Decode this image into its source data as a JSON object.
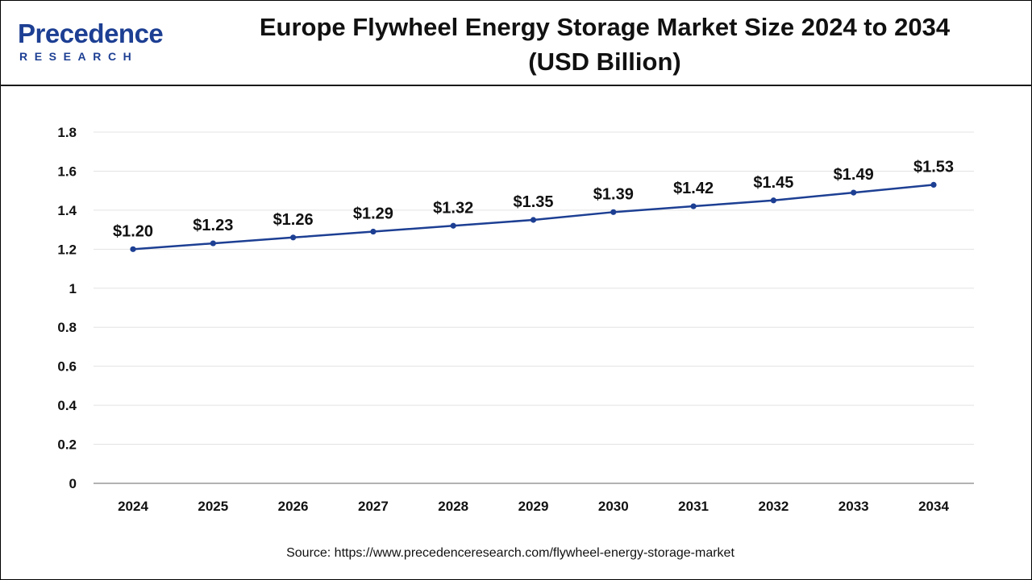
{
  "brand": {
    "name_main": "Precedence",
    "name_sub": "RESEARCH",
    "color": "#1d3f93"
  },
  "chart_data": {
    "type": "line",
    "title": "Europe Flywheel Energy Storage Market Size 2024 to 2034",
    "subtitle": "(USD Billion)",
    "categories": [
      "2024",
      "2025",
      "2026",
      "2027",
      "2028",
      "2029",
      "2030",
      "2031",
      "2032",
      "2033",
      "2034"
    ],
    "values": [
      1.2,
      1.23,
      1.26,
      1.29,
      1.32,
      1.35,
      1.39,
      1.42,
      1.45,
      1.49,
      1.53
    ],
    "data_labels": [
      "$1.20",
      "$1.23",
      "$1.26",
      "$1.29",
      "$1.32",
      "$1.35",
      "$1.39",
      "$1.42",
      "$1.45",
      "$1.49",
      "$1.53"
    ],
    "y_ticks": [
      0,
      0.2,
      0.4,
      0.6,
      0.8,
      1,
      1.2,
      1.4,
      1.6,
      1.8
    ],
    "y_tick_labels": [
      "0",
      "0.2",
      "0.4",
      "0.6",
      "0.8",
      "1",
      "1.2",
      "1.4",
      "1.6",
      "1.8"
    ],
    "ylim": [
      0,
      1.8
    ],
    "xlabel": "",
    "ylabel": "",
    "grid": true,
    "line_color": "#1d3f93"
  },
  "source_text": "Source: https://www.precedenceresearch.com/flywheel-energy-storage-market"
}
